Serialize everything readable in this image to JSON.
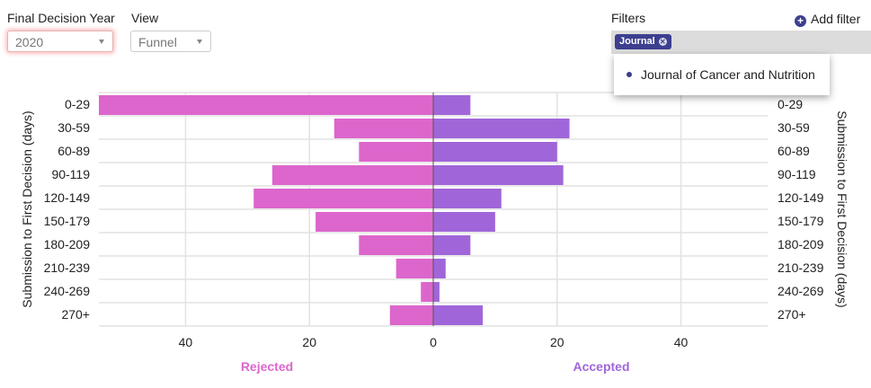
{
  "controls": {
    "year_label": "Final Decision Year",
    "year_value": "2020",
    "view_label": "View",
    "view_value": "Funnel",
    "filters_label": "Filters",
    "add_filter_label": "Add filter",
    "filter_chip": "Journal",
    "dropdown_item": "Journal of Cancer and Nutrition"
  },
  "colors": {
    "rejected": "#dc66cc",
    "accepted": "#a066d9",
    "chip": "#3c3f8f"
  },
  "chart_data": {
    "type": "bar",
    "orientation": "horizontal-diverging",
    "categories": [
      "0-29",
      "30-59",
      "60-89",
      "90-119",
      "120-149",
      "150-179",
      "180-209",
      "210-239",
      "240-269",
      "270+"
    ],
    "series": [
      {
        "name": "Rejected",
        "side": "left",
        "values": [
          54,
          16,
          12,
          26,
          29,
          19,
          12,
          6,
          2,
          7
        ]
      },
      {
        "name": "Accepted",
        "side": "right",
        "values": [
          6,
          22,
          20,
          21,
          11,
          10,
          6,
          2,
          1,
          8
        ]
      }
    ],
    "xlim": [
      -54,
      54
    ],
    "xticks": [
      -40,
      -20,
      0,
      20,
      40
    ],
    "xtick_labels": [
      "40",
      "20",
      "0",
      "20",
      "40"
    ],
    "ylabel_left": "Submission to First Decision (days)",
    "ylabel_right": "Submission to First Decision (days)",
    "xlabel_left": "Rejected",
    "xlabel_right": "Accepted",
    "grid": true
  }
}
